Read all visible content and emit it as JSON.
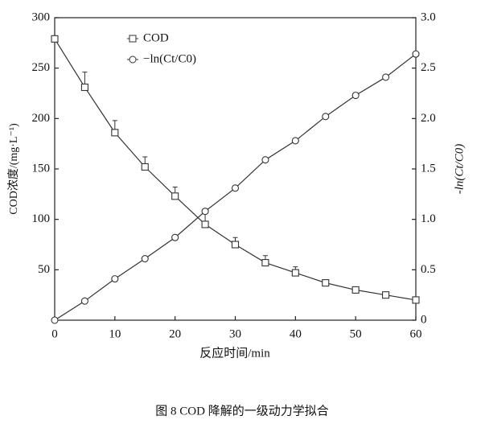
{
  "chart_data": {
    "type": "line",
    "caption": "图 8   COD 降解的一级动力学拟合",
    "xlabel": "反应时间/min",
    "ylabel": "COD浓度/(mg·L⁻¹)",
    "y2label": "-ln(Ct/C0)",
    "x": [
      0,
      5,
      10,
      15,
      20,
      25,
      30,
      35,
      40,
      45,
      50,
      55,
      60
    ],
    "series": [
      {
        "name": "COD",
        "marker": "square",
        "color": "#333333",
        "values": [
          279,
          231,
          186,
          152,
          123,
          95,
          75,
          57,
          47,
          37,
          30,
          25,
          20
        ],
        "errors": [
          null,
          15,
          12,
          10,
          9,
          11,
          7,
          7,
          6,
          3,
          3,
          3,
          3
        ]
      },
      {
        "name": "−ln(Ct/C0)",
        "marker": "circle",
        "color": "#333333",
        "axis": "y2",
        "values": [
          0,
          0.19,
          0.41,
          0.61,
          0.82,
          1.08,
          1.31,
          1.59,
          1.78,
          2.02,
          2.23,
          2.41,
          2.64
        ]
      }
    ],
    "xlim": [
      0,
      60
    ],
    "xticks": [
      0,
      10,
      20,
      30,
      40,
      50,
      60
    ],
    "ylim": [
      0,
      300
    ],
    "yticks": [
      50,
      100,
      150,
      200,
      250,
      300
    ],
    "y2lim": [
      0,
      3
    ],
    "y2ticks": [
      0,
      0.5,
      {
        "value": 1,
        "label": "1.0"
      },
      1.5,
      {
        "value": 2,
        "label": "2.0"
      },
      2.5,
      {
        "value": 3,
        "label": "3.0"
      }
    ]
  }
}
